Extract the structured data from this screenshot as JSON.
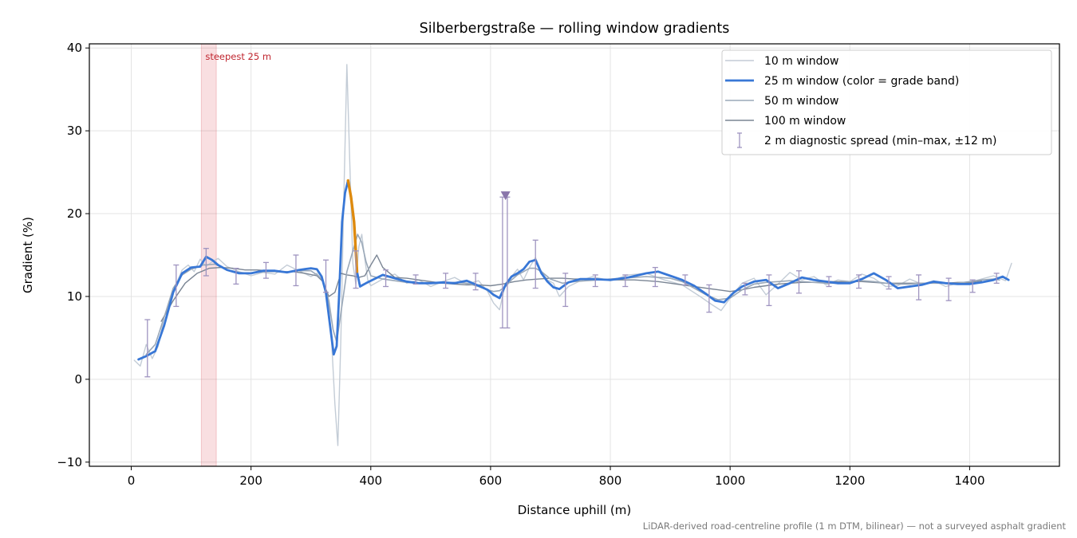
{
  "chart_data": {
    "type": "line",
    "title": "Silberbergstraße — rolling window gradients",
    "xlabel": "Distance uphill (m)",
    "ylabel": "Gradient (%)",
    "xlim": [
      -70,
      1550
    ],
    "ylim": [
      -10.5,
      40.5
    ],
    "xticks": [
      0,
      200,
      400,
      600,
      800,
      1000,
      1200,
      1400
    ],
    "yticks": [
      -10,
      0,
      10,
      20,
      30,
      40
    ],
    "xtick_labels": [
      "0",
      "200",
      "400",
      "600",
      "800",
      "1000",
      "1200",
      "1400"
    ],
    "ytick_labels": [
      "−10",
      "0",
      "10",
      "20",
      "30",
      "40"
    ],
    "grid": true,
    "legend_position": "top-right",
    "footnote": "LiDAR-derived road-centreline profile (1 m DTM, bilinear) — not a surveyed asphalt gradient",
    "highlight": {
      "x_start": 117,
      "x_end": 142,
      "label": "steepest 25 m",
      "color": "#d9434f"
    },
    "marker": {
      "x": 625,
      "y": 22.2,
      "color": "#8a76ab"
    },
    "series": [
      {
        "name": "10 m window",
        "color": "#c3ccd6",
        "width": 1.4,
        "x": [
          5,
          15,
          25,
          35,
          45,
          55,
          65,
          75,
          85,
          95,
          105,
          115,
          125,
          135,
          145,
          160,
          180,
          200,
          220,
          240,
          260,
          280,
          300,
          310,
          320,
          330,
          335,
          340,
          345,
          350,
          355,
          360,
          365,
          370,
          375,
          380,
          385,
          390,
          395,
          400,
          420,
          440,
          460,
          480,
          500,
          520,
          540,
          560,
          580,
          595,
          605,
          615,
          625,
          635,
          645,
          655,
          665,
          675,
          685,
          695,
          705,
          715,
          730,
          750,
          770,
          800,
          830,
          860,
          890,
          920,
          950,
          970,
          985,
          1000,
          1020,
          1040,
          1060,
          1080,
          1100,
          1120,
          1140,
          1160,
          1180,
          1200,
          1220,
          1240,
          1260,
          1280,
          1300,
          1320,
          1340,
          1360,
          1380,
          1400,
          1420,
          1440,
          1460,
          1470
        ],
        "y": [
          2.3,
          1.6,
          4.2,
          2.5,
          4.0,
          7.5,
          9.5,
          11.5,
          13.2,
          13.8,
          13.0,
          14.5,
          13.6,
          14.2,
          14.6,
          13.6,
          13.0,
          12.5,
          12.9,
          12.7,
          13.8,
          13.1,
          12.4,
          12.8,
          11.8,
          9.0,
          4.0,
          -3.0,
          -8.0,
          5.0,
          22.0,
          38.0,
          26.0,
          14.0,
          11.5,
          16.0,
          17.5,
          14.5,
          12.0,
          11.3,
          12.1,
          12.7,
          11.6,
          12.0,
          11.2,
          11.8,
          12.3,
          11.5,
          11.9,
          10.6,
          9.2,
          8.4,
          11.6,
          12.4,
          13.3,
          12.0,
          13.5,
          14.7,
          13.0,
          12.0,
          11.6,
          10.0,
          11.2,
          11.9,
          12.4,
          11.9,
          12.6,
          12.8,
          12.0,
          11.4,
          10.0,
          9.0,
          8.3,
          9.8,
          11.6,
          12.2,
          10.2,
          11.5,
          12.9,
          12.0,
          12.4,
          11.4,
          12.0,
          11.8,
          12.7,
          12.2,
          11.2,
          11.3,
          12.1,
          11.5,
          11.9,
          11.2,
          11.6,
          11.7,
          12.1,
          12.5,
          11.9,
          14.0
        ]
      },
      {
        "name": "25 m window (color = grade band)",
        "color": "#3877d6",
        "width": 2.8,
        "x": [
          12,
          25,
          40,
          55,
          70,
          85,
          100,
          115,
          125,
          135,
          145,
          160,
          180,
          200,
          220,
          240,
          260,
          280,
          300,
          310,
          318,
          325,
          332,
          338,
          343,
          347,
          352,
          357,
          362,
          367,
          372,
          377,
          382,
          387,
          392,
          400,
          420,
          440,
          460,
          480,
          500,
          520,
          540,
          560,
          580,
          595,
          605,
          615,
          625,
          635,
          645,
          655,
          665,
          675,
          685,
          695,
          705,
          715,
          730,
          750,
          770,
          800,
          830,
          860,
          880,
          900,
          920,
          940,
          960,
          975,
          990,
          1005,
          1020,
          1040,
          1060,
          1080,
          1100,
          1120,
          1140,
          1160,
          1180,
          1200,
          1220,
          1240,
          1260,
          1280,
          1300,
          1320,
          1340,
          1360,
          1380,
          1400,
          1420,
          1440,
          1455,
          1465
        ],
        "y": [
          2.4,
          2.8,
          3.4,
          6.5,
          10.5,
          12.8,
          13.5,
          13.6,
          14.8,
          14.4,
          13.8,
          13.2,
          12.8,
          12.8,
          13.1,
          13.1,
          12.9,
          13.2,
          13.4,
          13.3,
          12.4,
          10.5,
          6.5,
          3.0,
          4.0,
          10.0,
          19.0,
          22.5,
          24.0,
          22.0,
          19.0,
          13.0,
          11.2,
          11.4,
          11.6,
          11.9,
          12.6,
          12.2,
          11.8,
          11.6,
          11.6,
          11.7,
          11.6,
          11.9,
          11.3,
          10.8,
          10.2,
          9.8,
          11.4,
          12.4,
          12.8,
          13.3,
          14.2,
          14.4,
          12.8,
          11.8,
          11.1,
          10.9,
          11.7,
          12.1,
          12.1,
          12.0,
          12.3,
          12.8,
          13.0,
          12.5,
          12.0,
          11.3,
          10.3,
          9.5,
          9.3,
          10.4,
          11.2,
          11.8,
          12.0,
          11.0,
          11.6,
          12.3,
          12.0,
          11.8,
          11.6,
          11.6,
          12.1,
          12.8,
          12.0,
          11.0,
          11.2,
          11.4,
          11.8,
          11.6,
          11.5,
          11.5,
          11.7,
          12.0,
          12.4,
          12.0
        ]
      },
      {
        "name": "50 m window",
        "color": "#9aa8b8",
        "width": 1.6,
        "x": [
          25,
          40,
          55,
          70,
          85,
          100,
          120,
          140,
          160,
          180,
          200,
          220,
          240,
          260,
          280,
          300,
          310,
          320,
          330,
          337,
          343,
          350,
          360,
          370,
          378,
          385,
          392,
          400,
          420,
          440,
          460,
          480,
          500,
          520,
          540,
          560,
          580,
          595,
          605,
          615,
          625,
          635,
          645,
          655,
          665,
          675,
          685,
          700,
          720,
          740,
          760,
          780,
          800,
          820,
          840,
          860,
          880,
          900,
          920,
          940,
          960,
          980,
          1000,
          1020,
          1040,
          1060,
          1080,
          1100,
          1120,
          1140,
          1160,
          1180,
          1200,
          1220,
          1240,
          1260,
          1280,
          1300,
          1320,
          1340,
          1360,
          1380,
          1400,
          1420,
          1440,
          1450
        ],
        "y": [
          3.0,
          4.2,
          7.5,
          11.0,
          12.6,
          13.3,
          13.8,
          13.9,
          13.2,
          12.9,
          12.8,
          13.0,
          13.0,
          12.9,
          13.1,
          13.1,
          12.6,
          12.0,
          9.5,
          6.0,
          4.5,
          8.0,
          13.0,
          15.5,
          17.5,
          16.5,
          14.2,
          12.5,
          12.1,
          11.9,
          11.7,
          11.6,
          11.6,
          11.6,
          11.7,
          11.6,
          11.2,
          10.8,
          10.6,
          10.7,
          11.2,
          12.0,
          12.6,
          13.0,
          13.4,
          13.4,
          13.0,
          12.1,
          11.6,
          11.8,
          11.9,
          12.0,
          12.1,
          12.2,
          12.3,
          12.4,
          12.3,
          12.2,
          11.8,
          11.0,
          10.2,
          9.6,
          9.8,
          10.8,
          11.5,
          11.7,
          11.8,
          11.9,
          11.8,
          11.7,
          11.6,
          11.6,
          11.8,
          11.9,
          11.8,
          11.6,
          11.5,
          11.5,
          11.6,
          11.6,
          11.6,
          11.6,
          11.8,
          12.0,
          12.1,
          12.0
        ]
      },
      {
        "name": "100 m window",
        "color": "#7a8594",
        "width": 1.4,
        "x": [
          50,
          70,
          90,
          110,
          130,
          150,
          170,
          190,
          210,
          230,
          250,
          270,
          290,
          310,
          320,
          330,
          340,
          350,
          360,
          370,
          380,
          390,
          400,
          410,
          420,
          440,
          460,
          480,
          500,
          520,
          540,
          560,
          580,
          600,
          620,
          640,
          660,
          680,
          700,
          720,
          740,
          760,
          780,
          800,
          820,
          840,
          860,
          880,
          900,
          920,
          940,
          960,
          980,
          1000,
          1020,
          1040,
          1060,
          1080,
          1100,
          1120,
          1140,
          1160,
          1180,
          1200,
          1220,
          1240,
          1260,
          1280,
          1300,
          1320,
          1340,
          1360,
          1380,
          1400,
          1420
        ],
        "y": [
          7.0,
          9.5,
          11.6,
          12.8,
          13.4,
          13.5,
          13.4,
          13.2,
          13.2,
          13.1,
          13.0,
          13.0,
          12.8,
          12.5,
          11.8,
          10.0,
          10.5,
          12.8,
          12.6,
          12.5,
          12.3,
          12.5,
          13.8,
          15.0,
          13.5,
          12.3,
          12.2,
          12.0,
          11.8,
          11.6,
          11.5,
          11.4,
          11.4,
          11.3,
          11.5,
          11.8,
          12.0,
          12.1,
          12.2,
          12.2,
          12.1,
          12.1,
          12.0,
          12.0,
          12.0,
          12.0,
          11.9,
          11.8,
          11.6,
          11.4,
          11.2,
          11.0,
          10.8,
          10.6,
          10.8,
          11.1,
          11.3,
          11.5,
          11.6,
          11.7,
          11.7,
          11.8,
          11.8,
          11.8,
          11.8,
          11.7,
          11.6,
          11.6,
          11.6,
          11.6,
          11.6,
          11.6,
          11.7,
          11.7,
          11.9
        ]
      }
    ],
    "hot_segment": {
      "x_start": 362,
      "x_end": 378,
      "color": "#de8a0e",
      "label": "25 m window (color = grade band)"
    },
    "error_bars": {
      "name": "2 m diagnostic spread (min–max, ±12 m)",
      "color": "#9f94c0",
      "points": [
        {
          "x": 27,
          "low": 0.3,
          "high": 7.2
        },
        {
          "x": 75,
          "low": 8.8,
          "high": 13.8
        },
        {
          "x": 125,
          "low": 12.5,
          "high": 15.8
        },
        {
          "x": 175,
          "low": 11.5,
          "high": 13.4
        },
        {
          "x": 225,
          "low": 12.2,
          "high": 14.1
        },
        {
          "x": 275,
          "low": 11.3,
          "high": 15.0
        },
        {
          "x": 325,
          "low": 10.5,
          "high": 14.4
        },
        {
          "x": 375,
          "low": 11.0,
          "high": 15.5
        },
        {
          "x": 425,
          "low": 11.2,
          "high": 13.2
        },
        {
          "x": 475,
          "low": 11.5,
          "high": 12.6
        },
        {
          "x": 525,
          "low": 11.0,
          "high": 12.8
        },
        {
          "x": 575,
          "low": 10.8,
          "high": 12.8
        },
        {
          "x": 620,
          "low": 6.2,
          "high": 22.0
        },
        {
          "x": 628,
          "low": 6.2,
          "high": 22.0
        },
        {
          "x": 675,
          "low": 11.0,
          "high": 16.8
        },
        {
          "x": 725,
          "low": 8.8,
          "high": 12.8
        },
        {
          "x": 775,
          "low": 11.2,
          "high": 12.6
        },
        {
          "x": 825,
          "low": 11.2,
          "high": 12.6
        },
        {
          "x": 875,
          "low": 11.2,
          "high": 13.5
        },
        {
          "x": 925,
          "low": 11.4,
          "high": 12.6
        },
        {
          "x": 965,
          "low": 8.1,
          "high": 11.4
        },
        {
          "x": 1025,
          "low": 10.2,
          "high": 11.6
        },
        {
          "x": 1065,
          "low": 8.9,
          "high": 12.6
        },
        {
          "x": 1115,
          "low": 10.4,
          "high": 13.1
        },
        {
          "x": 1165,
          "low": 11.2,
          "high": 12.4
        },
        {
          "x": 1215,
          "low": 11.0,
          "high": 12.6
        },
        {
          "x": 1265,
          "low": 10.9,
          "high": 12.4
        },
        {
          "x": 1315,
          "low": 9.6,
          "high": 12.6
        },
        {
          "x": 1365,
          "low": 9.5,
          "high": 12.2
        },
        {
          "x": 1405,
          "low": 10.5,
          "high": 12.0
        },
        {
          "x": 1445,
          "low": 11.6,
          "high": 12.8
        }
      ]
    }
  }
}
